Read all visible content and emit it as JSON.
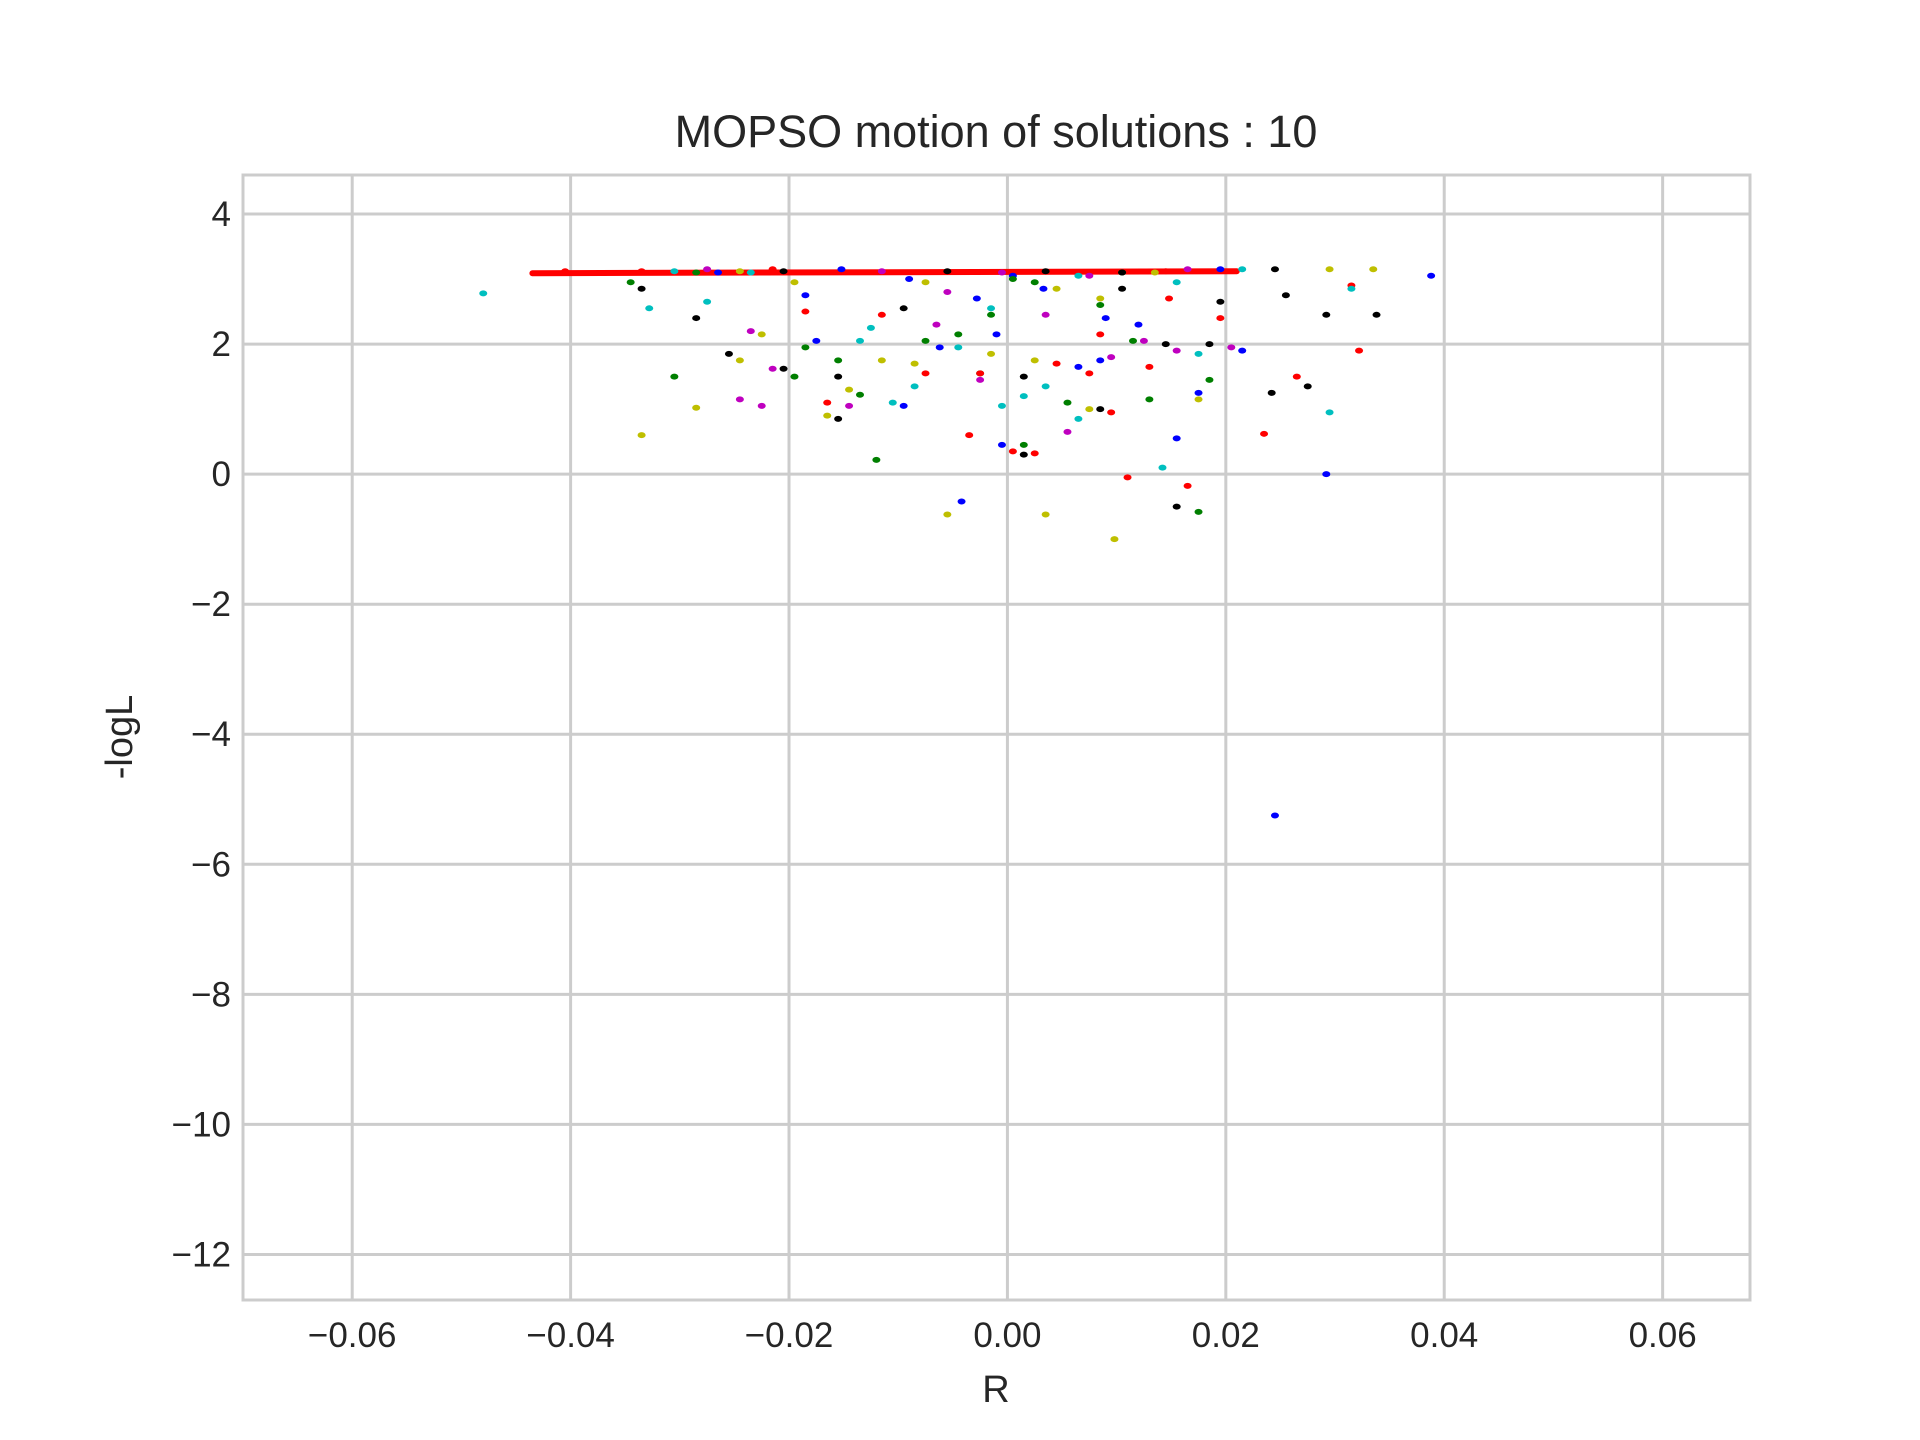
{
  "chart_data": {
    "type": "scatter",
    "title": "MOPSO motion of solutions : 10",
    "xlabel": "R",
    "ylabel": "-logL",
    "xlim": [
      -0.07,
      0.068
    ],
    "ylim": [
      -12.7,
      4.6
    ],
    "grid": true,
    "xticks": [
      -0.06,
      -0.04,
      -0.02,
      0.0,
      0.02,
      0.04,
      0.06
    ],
    "xtick_labels": [
      "−0.06",
      "−0.04",
      "−0.02",
      "0.00",
      "0.02",
      "0.04",
      "0.06"
    ],
    "yticks": [
      4,
      2,
      0,
      -2,
      -4,
      -6,
      -8,
      -10,
      -12
    ],
    "ytick_labels": [
      "4",
      "2",
      "0",
      "−2",
      "−4",
      "−6",
      "−8",
      "−10",
      "−12"
    ],
    "colors": {
      "b": "#0000ff",
      "g": "#007f00",
      "r": "#ff0000",
      "c": "#00bfbf",
      "m": "#bf00bf",
      "y": "#bfbf00",
      "k": "#000000"
    },
    "front_line": {
      "color": "#ff0000",
      "x": [
        -0.0435,
        0.021
      ],
      "y": [
        3.09,
        3.12
      ]
    },
    "series": [
      {
        "color_key": "b",
        "points": [
          [
            0.0245,
            -5.25
          ],
          [
            -0.0042,
            -0.42
          ],
          [
            0.0292,
            0.0
          ],
          [
            0.0175,
            1.25
          ],
          [
            -0.0005,
            0.45
          ],
          [
            0.0085,
            1.75
          ],
          [
            -0.0185,
            2.75
          ],
          [
            0.009,
            2.4
          ],
          [
            0.0215,
            1.9
          ],
          [
            -0.0028,
            2.7
          ],
          [
            0.012,
            2.3
          ],
          [
            -0.0095,
            1.05
          ],
          [
            -0.001,
            2.15
          ],
          [
            0.0155,
            0.55
          ],
          [
            0.0388,
            3.05
          ],
          [
            -0.0152,
            3.15
          ],
          [
            0.0005,
            3.05
          ],
          [
            -0.0265,
            3.1
          ],
          [
            0.0033,
            2.85
          ],
          [
            -0.0062,
            1.95
          ],
          [
            0.0065,
            1.65
          ],
          [
            -0.0175,
            2.05
          ],
          [
            0.0195,
            3.15
          ],
          [
            -0.009,
            3.0
          ]
        ]
      },
      {
        "color_key": "g",
        "points": [
          [
            -0.012,
            0.22
          ],
          [
            0.0175,
            -0.58
          ],
          [
            -0.0185,
            1.95
          ],
          [
            0.0015,
            0.45
          ],
          [
            -0.0155,
            1.75
          ],
          [
            0.0115,
            2.05
          ],
          [
            -0.0075,
            2.05
          ],
          [
            0.0085,
            2.6
          ],
          [
            -0.0045,
            2.15
          ],
          [
            0.0055,
            1.1
          ],
          [
            -0.0345,
            2.95
          ],
          [
            -0.0285,
            3.1
          ],
          [
            0.013,
            1.15
          ],
          [
            -0.0025,
            1.55
          ],
          [
            0.0185,
            1.45
          ],
          [
            -0.0135,
            1.22
          ],
          [
            0.0005,
            3.0
          ],
          [
            0.0105,
            3.1
          ],
          [
            -0.0195,
            1.5
          ],
          [
            -0.0305,
            1.5
          ],
          [
            0.0025,
            2.95
          ],
          [
            -0.0015,
            2.45
          ]
        ]
      },
      {
        "color_key": "r",
        "points": [
          [
            0.011,
            -0.05
          ],
          [
            0.0025,
            0.32
          ],
          [
            0.0235,
            0.62
          ],
          [
            0.0095,
            0.95
          ],
          [
            0.0265,
            1.5
          ],
          [
            0.0322,
            1.9
          ],
          [
            -0.0075,
            1.55
          ],
          [
            -0.0165,
            1.1
          ],
          [
            0.0148,
            2.7
          ],
          [
            -0.0035,
            0.6
          ],
          [
            0.0075,
            1.55
          ],
          [
            0.0005,
            0.35
          ],
          [
            -0.0185,
            2.5
          ],
          [
            0.013,
            1.65
          ],
          [
            -0.0115,
            2.45
          ],
          [
            0.0315,
            2.9
          ],
          [
            0.0165,
            -0.18
          ],
          [
            0.0045,
            1.7
          ],
          [
            -0.0025,
            1.55
          ],
          [
            0.0195,
            2.4
          ],
          [
            -0.0215,
            3.15
          ],
          [
            0.0145,
            3.12
          ],
          [
            -0.0405,
            3.12
          ],
          [
            -0.0335,
            3.12
          ],
          [
            0.0085,
            2.15
          ]
        ]
      },
      {
        "color_key": "c",
        "points": [
          [
            -0.048,
            2.78
          ],
          [
            -0.0328,
            2.55
          ],
          [
            -0.0275,
            2.65
          ],
          [
            -0.0125,
            2.25
          ],
          [
            -0.0005,
            1.05
          ],
          [
            0.0065,
            0.85
          ],
          [
            0.0142,
            0.1
          ],
          [
            0.0295,
            0.95
          ],
          [
            0.0175,
            1.85
          ],
          [
            -0.0085,
            1.35
          ],
          [
            0.0035,
            1.35
          ],
          [
            -0.0015,
            2.55
          ],
          [
            0.0155,
            2.95
          ],
          [
            0.0315,
            2.85
          ],
          [
            -0.0105,
            1.1
          ],
          [
            0.0015,
            1.2
          ],
          [
            -0.0045,
            1.95
          ],
          [
            0.0215,
            3.15
          ],
          [
            -0.0235,
            3.1
          ],
          [
            0.0065,
            3.05
          ],
          [
            -0.0305,
            3.12
          ],
          [
            -0.0135,
            2.05
          ]
        ]
      },
      {
        "color_key": "m",
        "points": [
          [
            -0.0245,
            1.15
          ],
          [
            -0.0225,
            1.05
          ],
          [
            -0.0235,
            2.2
          ],
          [
            -0.0145,
            1.05
          ],
          [
            -0.0055,
            2.8
          ],
          [
            0.0035,
            2.45
          ],
          [
            0.0155,
            1.9
          ],
          [
            -0.0025,
            1.45
          ],
          [
            0.0095,
            1.8
          ],
          [
            0.0055,
            0.65
          ],
          [
            -0.0215,
            1.62
          ],
          [
            0.0205,
            1.95
          ],
          [
            -0.0065,
            2.3
          ],
          [
            0.0125,
            2.05
          ],
          [
            -0.0005,
            3.1
          ],
          [
            0.0165,
            3.15
          ],
          [
            -0.0275,
            3.15
          ],
          [
            0.0075,
            3.05
          ],
          [
            -0.0115,
            3.12
          ]
        ]
      },
      {
        "color_key": "y",
        "points": [
          [
            0.0098,
            -1.0
          ],
          [
            0.0035,
            -0.62
          ],
          [
            -0.0055,
            -0.62
          ],
          [
            -0.0335,
            0.6
          ],
          [
            -0.0285,
            1.02
          ],
          [
            -0.0245,
            1.75
          ],
          [
            -0.0225,
            2.15
          ],
          [
            -0.0165,
            0.9
          ],
          [
            -0.0145,
            1.3
          ],
          [
            -0.0115,
            1.75
          ],
          [
            -0.0085,
            1.7
          ],
          [
            0.0025,
            1.75
          ],
          [
            0.0075,
            1.0
          ],
          [
            0.0175,
            1.15
          ],
          [
            0.0295,
            3.15
          ],
          [
            0.0335,
            3.15
          ],
          [
            0.0135,
            3.1
          ],
          [
            -0.0195,
            2.95
          ],
          [
            0.0045,
            2.85
          ],
          [
            -0.0075,
            2.95
          ],
          [
            0.0085,
            2.7
          ],
          [
            -0.0015,
            1.85
          ],
          [
            -0.0245,
            3.12
          ]
        ]
      },
      {
        "color_key": "k",
        "points": [
          [
            0.0155,
            -0.5
          ],
          [
            0.0015,
            0.3
          ],
          [
            -0.0155,
            0.85
          ],
          [
            -0.0255,
            1.85
          ],
          [
            -0.0205,
            1.62
          ],
          [
            -0.0285,
            2.4
          ],
          [
            -0.0335,
            2.85
          ],
          [
            -0.0095,
            2.55
          ],
          [
            0.0105,
            2.85
          ],
          [
            0.0145,
            2.0
          ],
          [
            0.0185,
            2.0
          ],
          [
            0.0195,
            2.65
          ],
          [
            0.0242,
            1.25
          ],
          [
            0.0255,
            2.75
          ],
          [
            0.0275,
            1.35
          ],
          [
            0.0292,
            2.45
          ],
          [
            0.0338,
            2.45
          ],
          [
            0.0085,
            1.0
          ],
          [
            0.0015,
            1.5
          ],
          [
            -0.0155,
            1.5
          ],
          [
            -0.0205,
            3.12
          ],
          [
            0.0035,
            3.12
          ],
          [
            0.0105,
            3.1
          ],
          [
            0.0245,
            3.15
          ],
          [
            -0.0055,
            3.12
          ]
        ]
      }
    ]
  }
}
